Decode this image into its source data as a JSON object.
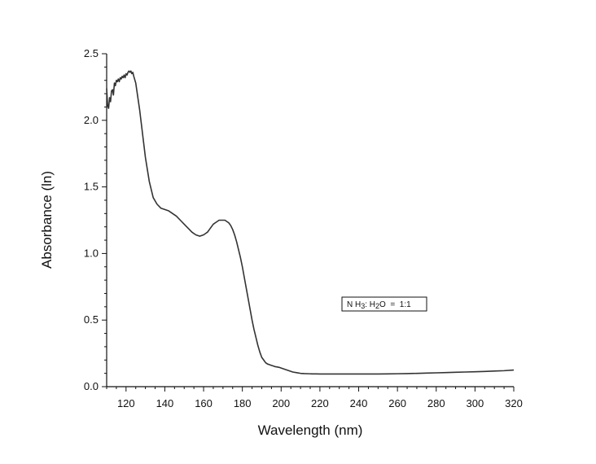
{
  "chart_data": {
    "type": "line",
    "xlabel": "Wavelength (nm)",
    "ylabel": "Absorbance (ln)",
    "xlim": [
      110,
      320
    ],
    "ylim": [
      0,
      2.5
    ],
    "x_ticks": [
      "120",
      "140",
      "160",
      "180",
      "200",
      "220",
      "240",
      "260",
      "280",
      "300",
      "320"
    ],
    "y_ticks": [
      "0.0",
      "0.5",
      "1.0",
      "1.5",
      "2.0",
      "2.5"
    ],
    "grid": false,
    "legend_position": "right",
    "annotation": {
      "label": "NH3: H2O = 1:1",
      "parts": [
        {
          "t": "N H",
          "sub": false
        },
        {
          "t": "3",
          "sub": true
        },
        {
          "t": ": H",
          "sub": false
        },
        {
          "t": "2",
          "sub": true
        },
        {
          "t": "O  =  1:1",
          "sub": false
        }
      ]
    },
    "series": [
      {
        "color": "#333333",
        "x": [
          110,
          110.5,
          111,
          111.5,
          112,
          112.5,
          113,
          113.5,
          114,
          114.5,
          115,
          115.5,
          116,
          116.5,
          117,
          117.5,
          118,
          118.5,
          119,
          119.5,
          120,
          120.5,
          121,
          121.5,
          122,
          122.5,
          123,
          123.5,
          124,
          125,
          126,
          127,
          128,
          129,
          130,
          132,
          134,
          136,
          138,
          140,
          142,
          144,
          146,
          148,
          150,
          152,
          154,
          156,
          158,
          160,
          161,
          162,
          163,
          164,
          165,
          166,
          167,
          168,
          169,
          170,
          171,
          172,
          173,
          174,
          175,
          176,
          177,
          178,
          179,
          180,
          181,
          182,
          183,
          184,
          185,
          186,
          187,
          188,
          189,
          190,
          191,
          192,
          193,
          194,
          195,
          196,
          197,
          198,
          199,
          200,
          202,
          204,
          206,
          208,
          210,
          212,
          214,
          216,
          218,
          220,
          225,
          230,
          235,
          240,
          245,
          250,
          255,
          260,
          265,
          270,
          275,
          280,
          285,
          290,
          295,
          300,
          305,
          310,
          315,
          320
        ],
        "y": [
          2.24,
          2.11,
          2.09,
          2.17,
          2.14,
          2.22,
          2.23,
          2.19,
          2.28,
          2.26,
          2.3,
          2.29,
          2.31,
          2.29,
          2.32,
          2.31,
          2.33,
          2.32,
          2.34,
          2.32,
          2.35,
          2.34,
          2.36,
          2.37,
          2.36,
          2.37,
          2.35,
          2.36,
          2.33,
          2.28,
          2.18,
          2.08,
          1.96,
          1.84,
          1.72,
          1.54,
          1.42,
          1.37,
          1.34,
          1.33,
          1.32,
          1.3,
          1.28,
          1.25,
          1.22,
          1.19,
          1.16,
          1.14,
          1.13,
          1.14,
          1.15,
          1.16,
          1.18,
          1.2,
          1.22,
          1.23,
          1.24,
          1.25,
          1.25,
          1.25,
          1.25,
          1.24,
          1.23,
          1.21,
          1.18,
          1.14,
          1.09,
          1.03,
          0.97,
          0.9,
          0.82,
          0.74,
          0.66,
          0.58,
          0.5,
          0.43,
          0.37,
          0.31,
          0.26,
          0.22,
          0.2,
          0.18,
          0.17,
          0.165,
          0.16,
          0.155,
          0.15,
          0.148,
          0.145,
          0.14,
          0.13,
          0.12,
          0.11,
          0.105,
          0.1,
          0.098,
          0.097,
          0.096,
          0.096,
          0.095,
          0.095,
          0.095,
          0.095,
          0.095,
          0.095,
          0.095,
          0.096,
          0.097,
          0.098,
          0.1,
          0.102,
          0.104,
          0.106,
          0.108,
          0.11,
          0.112,
          0.114,
          0.117,
          0.12,
          0.125
        ]
      }
    ]
  }
}
